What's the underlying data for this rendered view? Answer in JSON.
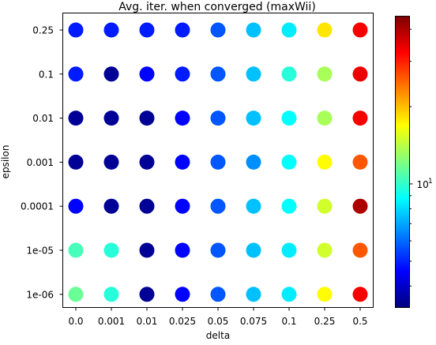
{
  "chart_data": {
    "type": "scatter",
    "title": "Avg. iter. when converged (maxWii)",
    "xlabel": "delta",
    "ylabel": "epsilon",
    "x_categories": [
      "0.0",
      "0.001",
      "0.01",
      "0.025",
      "0.05",
      "0.075",
      "0.1",
      "0.25",
      "0.5"
    ],
    "y_categories": [
      "0.25",
      "0.1",
      "0.01",
      "0.001",
      "0.0001",
      "1e-05",
      "1e-06"
    ],
    "colorbar": {
      "scale": "log",
      "colormap": "jet",
      "range": [
        3.3,
        45
      ],
      "major_tick": {
        "value": 10,
        "label": "10",
        "exponent": "1"
      },
      "minor_ticks": [
        4,
        5,
        6,
        7,
        8,
        9,
        20,
        30,
        40
      ]
    },
    "values": [
      [
        4.9,
        4.9,
        4.9,
        4.9,
        5.7,
        7.5,
        8.4,
        18,
        33
      ],
      [
        4.9,
        3.5,
        4.6,
        4.9,
        5.7,
        7.5,
        9.7,
        13.5,
        34
      ],
      [
        3.5,
        3.5,
        3.5,
        4.6,
        5.7,
        7.5,
        8.8,
        13.5,
        33
      ],
      [
        3.5,
        3.5,
        3.5,
        4.6,
        5.7,
        6.6,
        8.8,
        17,
        26
      ],
      [
        4.6,
        3.5,
        3.5,
        4.6,
        5.7,
        7.5,
        8.8,
        15,
        40
      ],
      [
        10.5,
        9.7,
        3.5,
        4.6,
        5.7,
        7.5,
        8.4,
        15,
        26
      ],
      [
        11.5,
        9.7,
        3.5,
        4.6,
        5.7,
        7.5,
        8.4,
        17,
        33
      ]
    ]
  }
}
